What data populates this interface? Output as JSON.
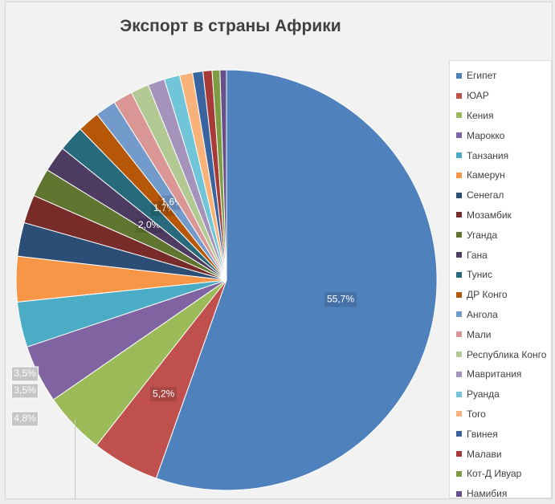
{
  "chart_data": {
    "type": "pie",
    "title": "Экспорт в страны Африки",
    "start_angle_deg": 0,
    "direction": "clockwise",
    "legend_position": "right",
    "slices": [
      {
        "name": "Египет",
        "value": 55.7,
        "label": "55,7%",
        "color": "#4f81bd"
      },
      {
        "name": "ЮАР",
        "value": 5.2,
        "label": "5,2%",
        "color": "#c0504d"
      },
      {
        "name": "Кения",
        "value": 4.8,
        "label": "4,8%",
        "color": "#9bbb59"
      },
      {
        "name": "Марокко",
        "value": 4.5,
        "label": "",
        "color": "#8064a2"
      },
      {
        "name": "Танзания",
        "value": 3.5,
        "label": "3,5%",
        "color": "#4bacc6"
      },
      {
        "name": "Камерун",
        "value": 3.5,
        "label": "3,5%",
        "color": "#f79646"
      },
      {
        "name": "Сенегал",
        "value": 2.6,
        "label": "",
        "color": "#2c4d75"
      },
      {
        "name": "Мозамбик",
        "value": 2.2,
        "label": "",
        "color": "#772c2a"
      },
      {
        "name": "Уганда",
        "value": 2.2,
        "label": "",
        "color": "#5f7530"
      },
      {
        "name": "Гана",
        "value": 2.0,
        "label": "2,0%",
        "color": "#4d3b62"
      },
      {
        "name": "Тунис",
        "value": 2.0,
        "label": "",
        "color": "#276a7c"
      },
      {
        "name": "ДР Конго",
        "value": 1.7,
        "label": "1,7%",
        "color": "#b65708"
      },
      {
        "name": "Ангола",
        "value": 1.6,
        "label": "1,6%",
        "color": "#729aca"
      },
      {
        "name": "Мали",
        "value": 1.5,
        "label": "",
        "color": "#d99694"
      },
      {
        "name": "Республика Конго",
        "value": 1.4,
        "label": "",
        "color": "#b3c994"
      },
      {
        "name": "Мавритания",
        "value": 1.3,
        "label": "",
        "color": "#a593bb"
      },
      {
        "name": "Руанда",
        "value": 1.2,
        "label": "",
        "color": "#70c5d9"
      },
      {
        "name": "Того",
        "value": 1.0,
        "label": "",
        "color": "#f9b27a"
      },
      {
        "name": "Гвинея",
        "value": 0.8,
        "label": "",
        "color": "#3a64a0"
      },
      {
        "name": "Малави",
        "value": 0.7,
        "label": "",
        "color": "#a63b37"
      },
      {
        "name": "Кот-Д Ивуар",
        "value": 0.6,
        "label": "",
        "color": "#7e9c43"
      },
      {
        "name": "Намибия",
        "value": 0.5,
        "label": "",
        "color": "#66508a"
      }
    ]
  }
}
